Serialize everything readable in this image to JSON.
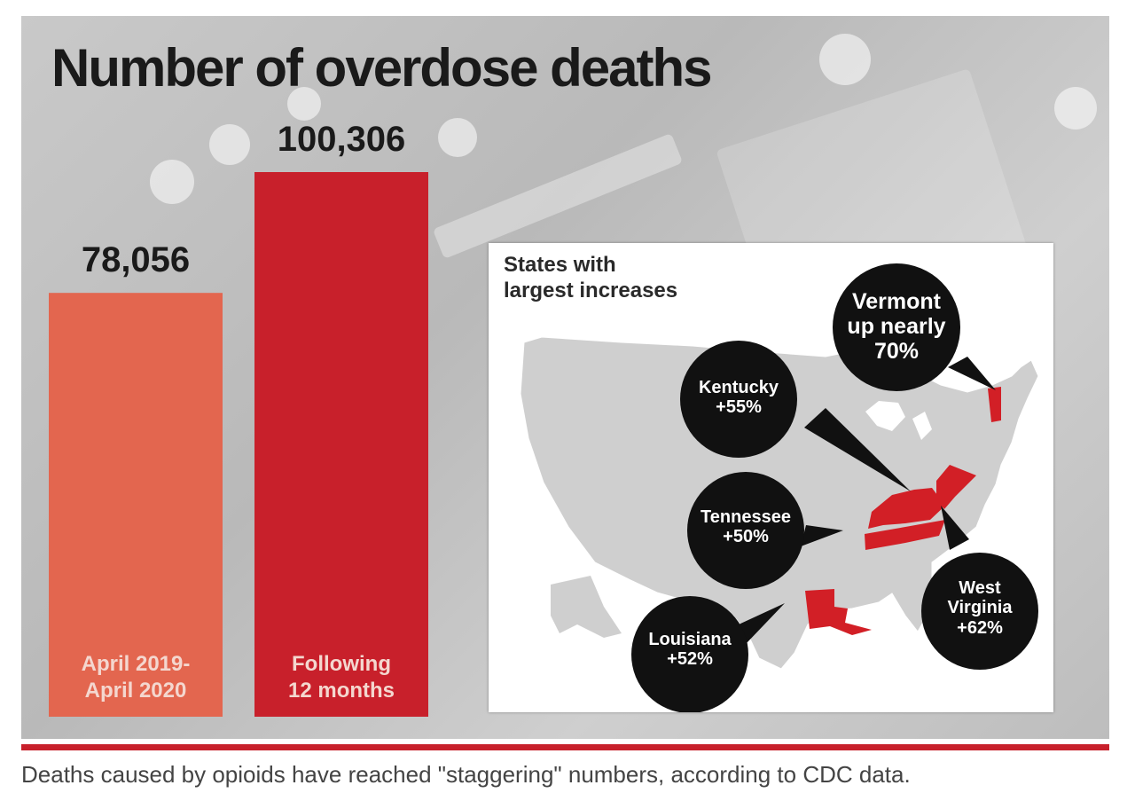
{
  "chart_data": {
    "type": "bar",
    "title": "Number of overdose deaths",
    "categories": [
      "April 2019-\nApril 2020",
      "Following\n12 months"
    ],
    "category_lines": [
      [
        "April 2019-",
        "April 2020"
      ],
      [
        "Following",
        "12 months"
      ]
    ],
    "values": [
      78056,
      100306
    ],
    "value_labels": [
      "78,056",
      "100,306"
    ],
    "bar_colors": [
      "#e3664f",
      "#c8202b"
    ],
    "ylim": [
      0,
      100306
    ],
    "grid": false,
    "legend": "none"
  },
  "map": {
    "title_lines": [
      "States with",
      "largest increases"
    ],
    "highlight_color": "#d21f26",
    "callouts": [
      {
        "id": "vermont",
        "lines": [
          "Vermont",
          "up nearly",
          "70%"
        ]
      },
      {
        "id": "kentucky",
        "lines": [
          "Kentucky",
          "+55%"
        ]
      },
      {
        "id": "tennessee",
        "lines": [
          "Tennessee",
          "+50%"
        ]
      },
      {
        "id": "west-virginia",
        "lines": [
          "West",
          "Virginia",
          "+62%"
        ]
      },
      {
        "id": "louisiana",
        "lines": [
          "Louisiana",
          "+52%"
        ]
      }
    ]
  },
  "caption": "Deaths caused by opioids have reached \"staggering\" numbers, according to CDC data."
}
